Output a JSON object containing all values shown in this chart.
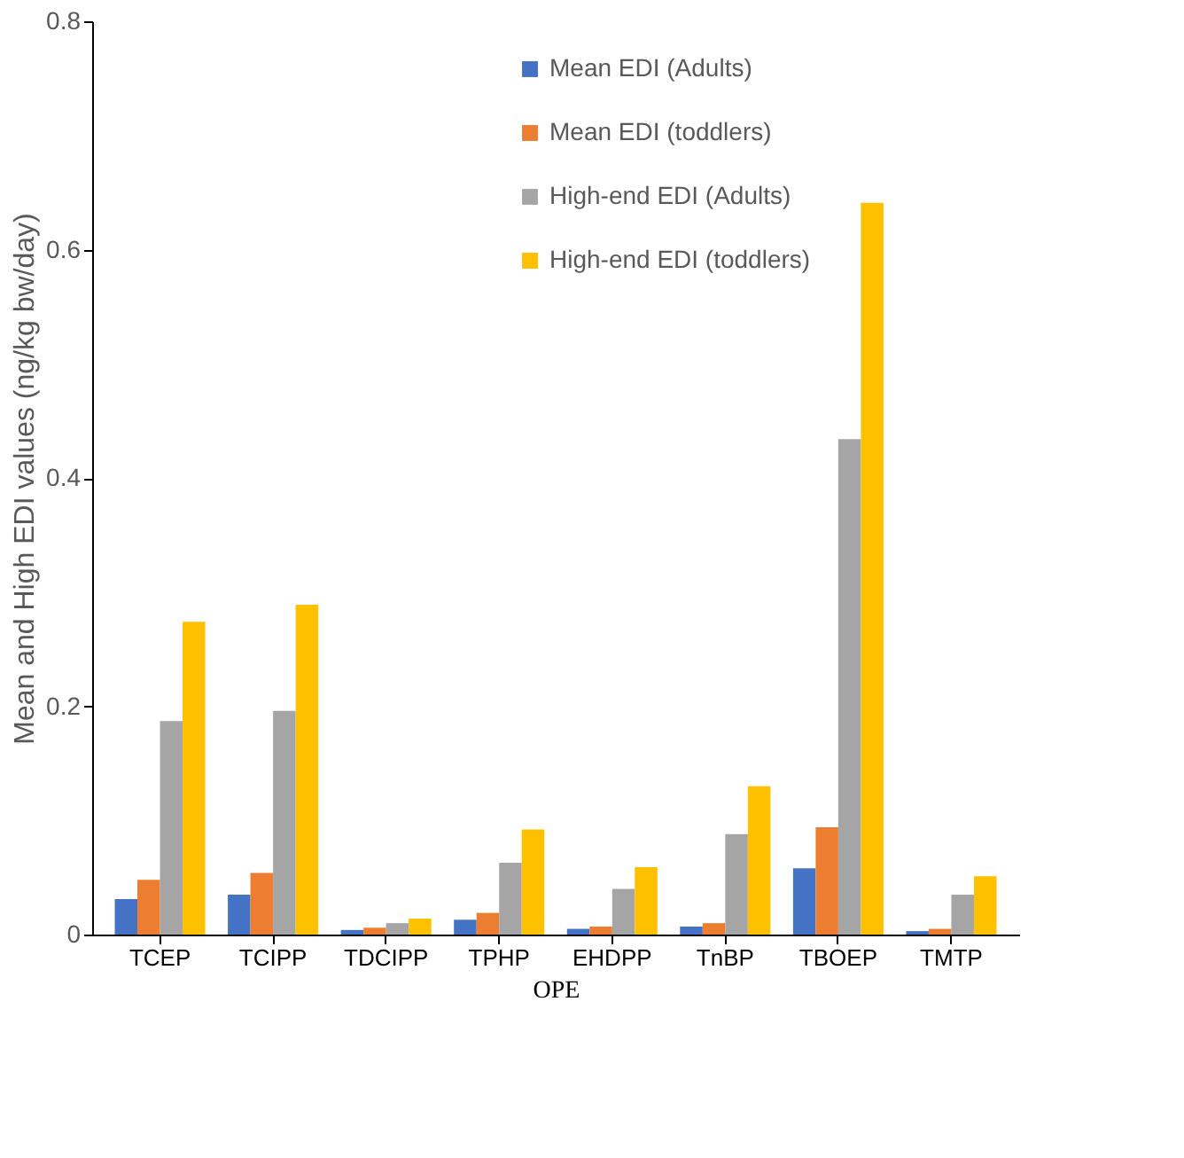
{
  "chart_data": {
    "type": "bar",
    "xlabel": "OPE",
    "ylabel": "Mean and High EDI  values (ng/kg bw/day)",
    "categories": [
      "TCEP",
      "TCIPP",
      "TDCIPP",
      "TPHP",
      "EHDPP",
      "TnBP",
      "TBOEP",
      "TMTP"
    ],
    "series": [
      {
        "name": "Mean EDI (Adults)",
        "color": "#4472c4",
        "values": [
          0.031,
          0.035,
          0.004,
          0.013,
          0.005,
          0.007,
          0.058,
          0.003
        ]
      },
      {
        "name": "Mean EDI (toddlers)",
        "color": "#ed7d31",
        "values": [
          0.048,
          0.054,
          0.006,
          0.019,
          0.007,
          0.01,
          0.094,
          0.005
        ]
      },
      {
        "name": "High-end EDI (Adults)",
        "color": "#a5a5a5",
        "values": [
          0.187,
          0.196,
          0.01,
          0.063,
          0.04,
          0.088,
          0.434,
          0.035
        ]
      },
      {
        "name": "High-end EDI (toddlers)",
        "color": "#ffc000",
        "values": [
          0.274,
          0.289,
          0.014,
          0.092,
          0.059,
          0.13,
          0.641,
          0.051
        ]
      }
    ],
    "ylim": [
      0,
      0.8
    ],
    "yticks": [
      0,
      0.2,
      0.4,
      0.6,
      0.8
    ],
    "grid": false,
    "legend": "top"
  }
}
